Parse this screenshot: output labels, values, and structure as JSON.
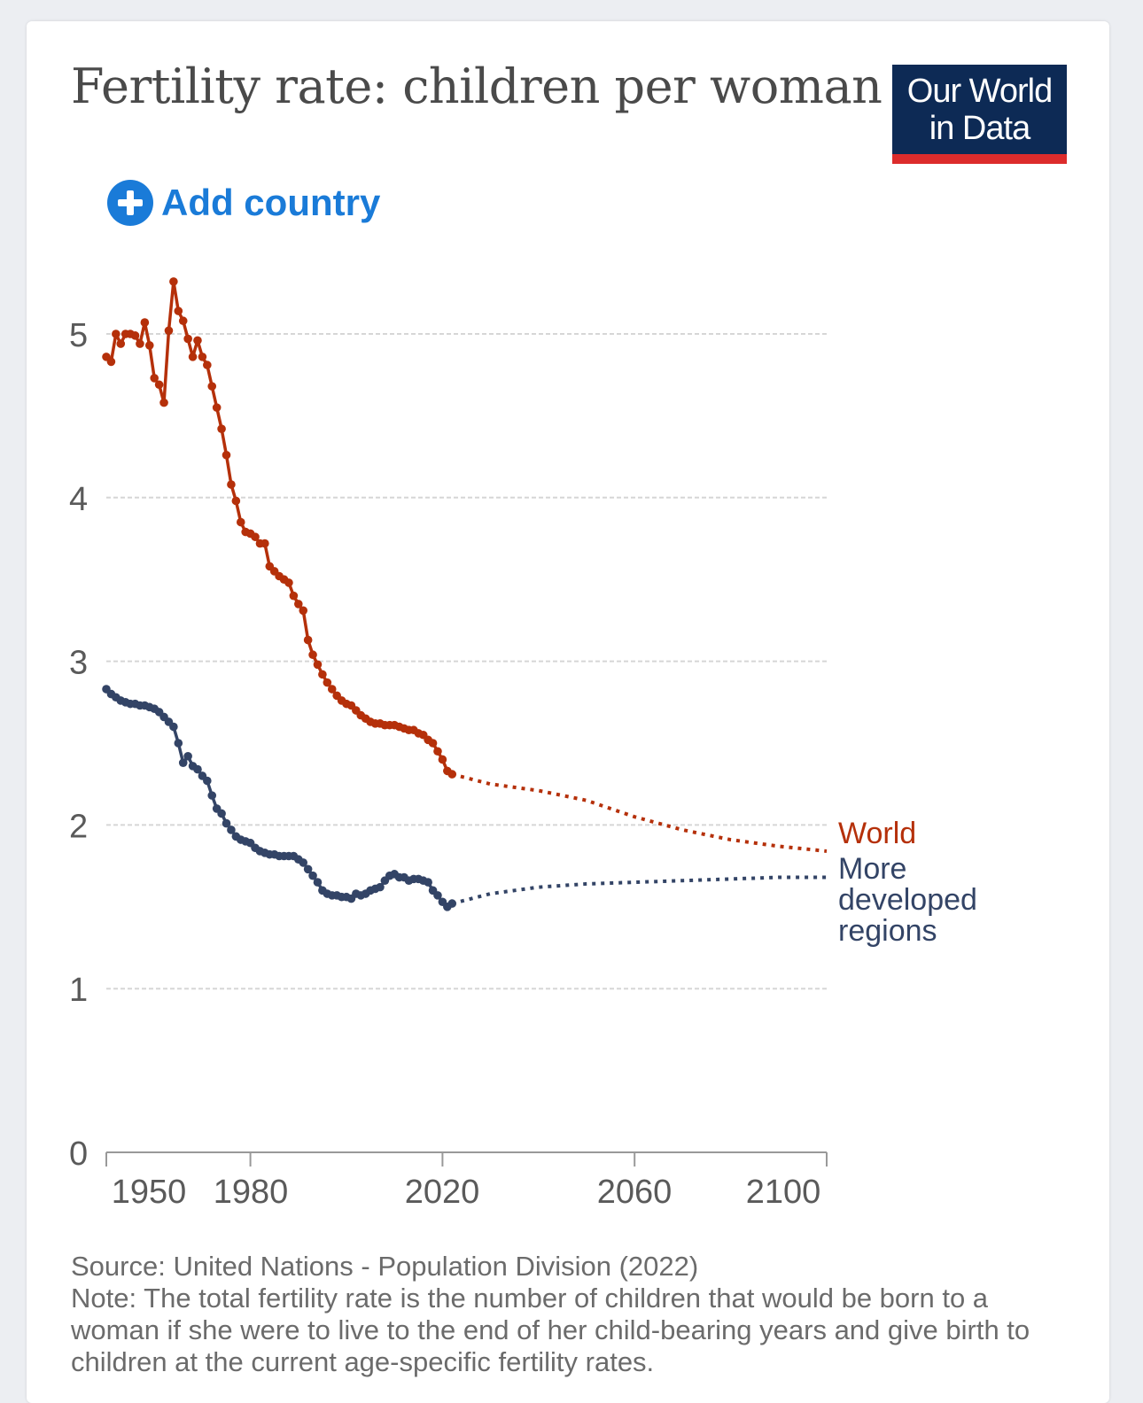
{
  "title": "Fertility rate: children per woman",
  "logo": {
    "line1": "Our World",
    "line2": "in Data",
    "bg": "#0d2a55",
    "accent": "#dc2c2c"
  },
  "add_country": {
    "label": "Add country",
    "icon": "plus-circle-icon",
    "color": "#1a7bd8"
  },
  "footer": {
    "source": "Source: United Nations - Population Division (2022)",
    "note_lines": [
      "Note: The total fertility rate is the number of children that would be born to a",
      "woman if she were to live to the end of her child-bearing years and give birth to",
      "children at the current age-specific fertility rates."
    ]
  },
  "chart_data": {
    "type": "line",
    "title": "Fertility rate: children per woman",
    "xlim": [
      1950,
      2100
    ],
    "ylim": [
      0,
      5
    ],
    "x_ticks": [
      1950,
      1980,
      2020,
      2060,
      2100
    ],
    "y_ticks": [
      0,
      1,
      2,
      3,
      4,
      5
    ],
    "grid": "horizontal dashed",
    "legend": "line-end labels on right",
    "series": [
      {
        "name": "World",
        "color": "#b5300a",
        "observed": [
          [
            1950,
            4.86
          ],
          [
            1951,
            4.83
          ],
          [
            1952,
            5.0
          ],
          [
            1953,
            4.94
          ],
          [
            1954,
            5.0
          ],
          [
            1955,
            5.0
          ],
          [
            1956,
            4.99
          ],
          [
            1957,
            4.94
          ],
          [
            1958,
            5.07
          ],
          [
            1959,
            4.93
          ],
          [
            1960,
            4.73
          ],
          [
            1961,
            4.69
          ],
          [
            1962,
            4.58
          ],
          [
            1963,
            5.02
          ],
          [
            1964,
            5.32
          ],
          [
            1965,
            5.14
          ],
          [
            1966,
            5.08
          ],
          [
            1967,
            4.97
          ],
          [
            1968,
            4.86
          ],
          [
            1969,
            4.96
          ],
          [
            1970,
            4.86
          ],
          [
            1971,
            4.81
          ],
          [
            1972,
            4.68
          ],
          [
            1973,
            4.55
          ],
          [
            1974,
            4.42
          ],
          [
            1975,
            4.26
          ],
          [
            1976,
            4.08
          ],
          [
            1977,
            3.98
          ],
          [
            1978,
            3.85
          ],
          [
            1979,
            3.79
          ],
          [
            1980,
            3.78
          ],
          [
            1981,
            3.76
          ],
          [
            1982,
            3.72
          ],
          [
            1983,
            3.72
          ],
          [
            1984,
            3.58
          ],
          [
            1985,
            3.55
          ],
          [
            1986,
            3.52
          ],
          [
            1987,
            3.5
          ],
          [
            1988,
            3.48
          ],
          [
            1989,
            3.4
          ],
          [
            1990,
            3.35
          ],
          [
            1991,
            3.31
          ],
          [
            1992,
            3.13
          ],
          [
            1993,
            3.04
          ],
          [
            1994,
            2.98
          ],
          [
            1995,
            2.92
          ],
          [
            1996,
            2.87
          ],
          [
            1997,
            2.83
          ],
          [
            1998,
            2.79
          ],
          [
            1999,
            2.76
          ],
          [
            2000,
            2.74
          ],
          [
            2001,
            2.73
          ],
          [
            2002,
            2.7
          ],
          [
            2003,
            2.67
          ],
          [
            2004,
            2.65
          ],
          [
            2005,
            2.63
          ],
          [
            2006,
            2.62
          ],
          [
            2007,
            2.62
          ],
          [
            2008,
            2.61
          ],
          [
            2009,
            2.61
          ],
          [
            2010,
            2.61
          ],
          [
            2011,
            2.6
          ],
          [
            2012,
            2.59
          ],
          [
            2013,
            2.58
          ],
          [
            2014,
            2.58
          ],
          [
            2015,
            2.56
          ],
          [
            2016,
            2.55
          ],
          [
            2017,
            2.52
          ],
          [
            2018,
            2.5
          ],
          [
            2019,
            2.45
          ],
          [
            2020,
            2.4
          ],
          [
            2021,
            2.33
          ],
          [
            2022,
            2.31
          ]
        ],
        "projected": [
          [
            2022,
            2.31
          ],
          [
            2030,
            2.25
          ],
          [
            2040,
            2.21
          ],
          [
            2050,
            2.15
          ],
          [
            2060,
            2.05
          ],
          [
            2070,
            1.97
          ],
          [
            2080,
            1.91
          ],
          [
            2090,
            1.87
          ],
          [
            2100,
            1.84
          ]
        ]
      },
      {
        "name": "More developed regions",
        "color": "#334466",
        "observed": [
          [
            1950,
            2.83
          ],
          [
            1951,
            2.8
          ],
          [
            1952,
            2.78
          ],
          [
            1953,
            2.76
          ],
          [
            1954,
            2.75
          ],
          [
            1955,
            2.74
          ],
          [
            1956,
            2.74
          ],
          [
            1957,
            2.73
          ],
          [
            1958,
            2.73
          ],
          [
            1959,
            2.72
          ],
          [
            1960,
            2.71
          ],
          [
            1961,
            2.69
          ],
          [
            1962,
            2.66
          ],
          [
            1963,
            2.63
          ],
          [
            1964,
            2.6
          ],
          [
            1965,
            2.5
          ],
          [
            1966,
            2.38
          ],
          [
            1967,
            2.42
          ],
          [
            1968,
            2.36
          ],
          [
            1969,
            2.34
          ],
          [
            1970,
            2.3
          ],
          [
            1971,
            2.27
          ],
          [
            1972,
            2.18
          ],
          [
            1973,
            2.1
          ],
          [
            1974,
            2.07
          ],
          [
            1975,
            2.01
          ],
          [
            1976,
            1.97
          ],
          [
            1977,
            1.93
          ],
          [
            1978,
            1.91
          ],
          [
            1979,
            1.9
          ],
          [
            1980,
            1.89
          ],
          [
            1981,
            1.86
          ],
          [
            1982,
            1.84
          ],
          [
            1983,
            1.83
          ],
          [
            1984,
            1.82
          ],
          [
            1985,
            1.82
          ],
          [
            1986,
            1.81
          ],
          [
            1987,
            1.81
          ],
          [
            1988,
            1.81
          ],
          [
            1989,
            1.81
          ],
          [
            1990,
            1.79
          ],
          [
            1991,
            1.77
          ],
          [
            1992,
            1.73
          ],
          [
            1993,
            1.69
          ],
          [
            1994,
            1.65
          ],
          [
            1995,
            1.6
          ],
          [
            1996,
            1.58
          ],
          [
            1997,
            1.57
          ],
          [
            1998,
            1.57
          ],
          [
            1999,
            1.56
          ],
          [
            2000,
            1.56
          ],
          [
            2001,
            1.55
          ],
          [
            2002,
            1.58
          ],
          [
            2003,
            1.57
          ],
          [
            2004,
            1.58
          ],
          [
            2005,
            1.6
          ],
          [
            2006,
            1.61
          ],
          [
            2007,
            1.62
          ],
          [
            2008,
            1.66
          ],
          [
            2009,
            1.69
          ],
          [
            2010,
            1.7
          ],
          [
            2011,
            1.68
          ],
          [
            2012,
            1.68
          ],
          [
            2013,
            1.66
          ],
          [
            2014,
            1.67
          ],
          [
            2015,
            1.67
          ],
          [
            2016,
            1.66
          ],
          [
            2017,
            1.65
          ],
          [
            2018,
            1.6
          ],
          [
            2019,
            1.57
          ],
          [
            2020,
            1.53
          ],
          [
            2021,
            1.5
          ],
          [
            2022,
            1.52
          ]
        ],
        "projected": [
          [
            2022,
            1.52
          ],
          [
            2030,
            1.58
          ],
          [
            2040,
            1.62
          ],
          [
            2050,
            1.64
          ],
          [
            2060,
            1.65
          ],
          [
            2070,
            1.66
          ],
          [
            2080,
            1.67
          ],
          [
            2090,
            1.68
          ],
          [
            2100,
            1.68
          ]
        ]
      }
    ]
  }
}
